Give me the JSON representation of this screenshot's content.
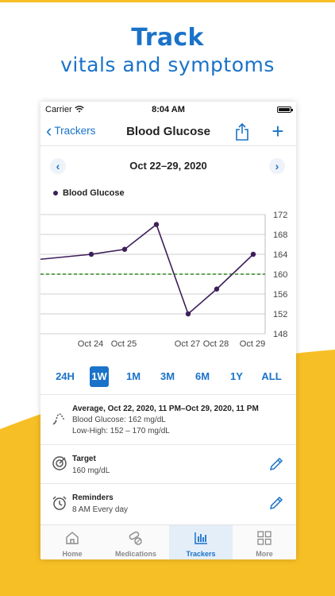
{
  "promo": {
    "headline": "Track",
    "subheadline": "vitals and symptoms"
  },
  "status_bar": {
    "carrier": "Carrier",
    "time": "8:04 AM"
  },
  "nav": {
    "back_label": "Trackers",
    "title": "Blood Glucose",
    "share_icon": "share-icon",
    "add_icon": "plus-icon"
  },
  "date_nav": {
    "range_label": "Oct 22–29, 2020"
  },
  "chart_data": {
    "type": "line",
    "series": [
      {
        "name": "Blood Glucose",
        "color": "#3d1f5a",
        "x": [
          "Oct 22",
          "Oct 24",
          "Oct 25",
          "Oct 26",
          "Oct 27",
          "Oct 28",
          "Oct 29"
        ],
        "values": [
          163,
          164,
          165,
          170,
          152,
          157,
          164
        ],
        "point_markers": [
          false,
          true,
          true,
          true,
          true,
          true,
          true
        ]
      }
    ],
    "x_tick_labels": [
      "Oct 24",
      "Oct 25",
      "Oct 27",
      "Oct 28",
      "Oct 29"
    ],
    "y_tick_labels": [
      "172",
      "168",
      "164",
      "160",
      "156",
      "152",
      "148"
    ],
    "ylim": [
      148,
      172
    ],
    "target_line": {
      "value": 160,
      "color": "#2f8a1e",
      "style": "dashed"
    },
    "grid": true
  },
  "ranges": {
    "items": [
      "24H",
      "1W",
      "1M",
      "3M",
      "6M",
      "1Y",
      "ALL"
    ],
    "selected": "1W"
  },
  "summary": {
    "title": "Average, Oct 22, 2020, 11 PM–Oct 29, 2020, 11 PM",
    "line1": "Blood Glucose: 162 mg/dL",
    "line2": "Low-High: 152 – 170 mg/dL"
  },
  "target": {
    "title": "Target",
    "value": "160 mg/dL"
  },
  "reminders": {
    "title": "Reminders",
    "value": "8 AM Every day"
  },
  "tabs": [
    {
      "label": "Home",
      "icon": "home-icon"
    },
    {
      "label": "Medications",
      "icon": "pills-icon"
    },
    {
      "label": "Trackers",
      "icon": "bar-chart-icon"
    },
    {
      "label": "More",
      "icon": "grid-icon"
    }
  ],
  "colors": {
    "brand_blue": "#1a72c9",
    "accent_yellow": "#f7bf26",
    "series": "#3d1f5a",
    "target": "#2f8a1e"
  }
}
